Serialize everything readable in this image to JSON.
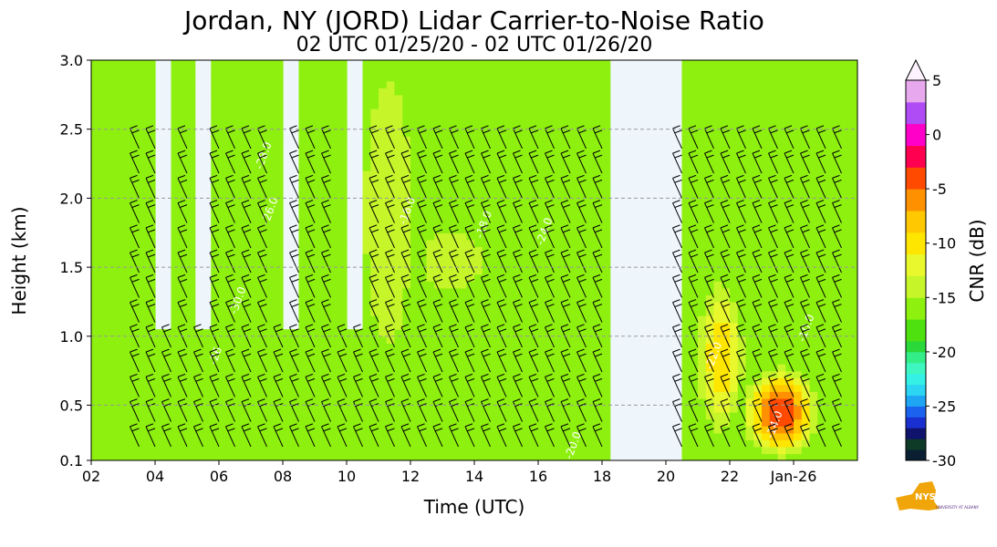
{
  "chart_data": {
    "type": "heatmap",
    "title": "Jordan, NY (JORD) Lidar Carrier-to-Noise Ratio",
    "subtitle": "02 UTC 01/25/20 - 02 UTC 01/26/20",
    "xlabel": "Time (UTC)",
    "ylabel": "Height (km)",
    "x_ticks": [
      "02",
      "04",
      "06",
      "08",
      "10",
      "12",
      "14",
      "16",
      "18",
      "20",
      "22",
      "Jan-26"
    ],
    "x_range_hours": [
      2,
      26
    ],
    "y_ticks": [
      "0.1",
      "0.5",
      "1.0",
      "1.5",
      "2.0",
      "2.5",
      "3.0"
    ],
    "ylim": [
      0.1,
      3.0
    ],
    "y_grid": true,
    "colorbar": {
      "label": "CNR (dB)",
      "ticks": [
        "5",
        "0",
        "-5",
        "-10",
        "-15",
        "-20",
        "-25",
        "-30"
      ],
      "range": [
        -30,
        5
      ],
      "extend": "max"
    },
    "contour_labels": [
      "-26",
      "-30.0",
      "-28.0",
      "-26.0",
      "-16.0",
      "-18.0",
      "-24.0",
      "-20.0",
      "-22.0",
      "-10.0",
      "-14.0"
    ],
    "overlay": "wind barbs",
    "background_color": "#eef6fc"
  },
  "logo": {
    "text": "NYS Mesonet",
    "subtext": "UNIVERSITY AT ALBANY"
  }
}
